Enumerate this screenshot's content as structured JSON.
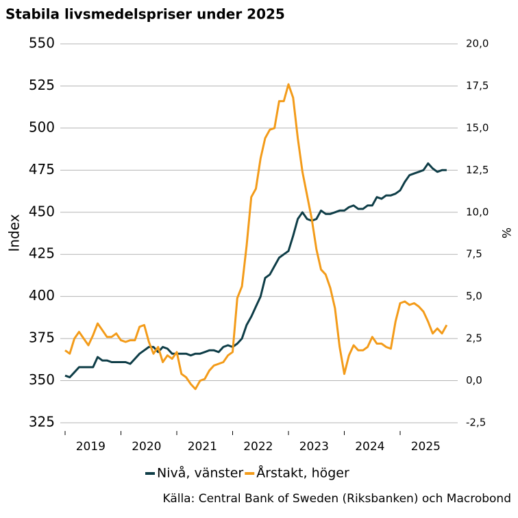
{
  "chart_data": {
    "type": "line",
    "title": "Stabila livsmedelspriser under 2025",
    "ylabel": "Index",
    "y2label": "%",
    "source": "Källa: Central Bank of Sweden (Riksbanken) och Macrobond",
    "categories": [
      null,
      null,
      null,
      null,
      null,
      null,
      "2019",
      null,
      null,
      null,
      null,
      null,
      null,
      null,
      null,
      null,
      null,
      null,
      "2020",
      null,
      null,
      null,
      null,
      null,
      null,
      null,
      null,
      null,
      null,
      null,
      "2021",
      null,
      null,
      null,
      null,
      null,
      null,
      null,
      null,
      null,
      null,
      null,
      "2022",
      null,
      null,
      null,
      null,
      null,
      null,
      null,
      null,
      null,
      null,
      null,
      "2023",
      null,
      null,
      null,
      null,
      null,
      null,
      null,
      null,
      null,
      null,
      null,
      "2024",
      null,
      null,
      null,
      null,
      null,
      null,
      null,
      null,
      null,
      null,
      null,
      "2025",
      null,
      null,
      null,
      null
    ],
    "series": [
      {
        "name": "Nivå, vänster",
        "color": "#0e3d47",
        "axis": "y",
        "values": [
          353,
          352,
          355,
          358,
          358,
          358,
          358,
          364,
          362,
          362,
          361,
          361,
          361,
          361,
          360,
          363,
          366,
          368,
          370,
          370,
          367,
          370,
          369,
          366,
          366,
          366,
          366,
          365,
          366,
          366,
          367,
          368,
          368,
          367,
          370,
          371,
          370,
          372,
          375,
          383,
          388,
          394,
          400,
          411,
          413,
          418,
          423,
          425,
          427,
          436,
          446,
          450,
          446,
          445,
          446,
          451,
          449,
          449,
          450,
          451,
          451,
          453,
          454,
          452,
          452,
          454,
          454,
          459,
          458,
          460,
          460,
          461,
          463,
          468,
          472,
          473,
          474,
          475,
          479,
          476,
          474,
          475,
          475
        ]
      },
      {
        "name": "Årstakt, höger",
        "color": "#f39b19",
        "axis": "y2",
        "values": [
          1.8,
          1.6,
          2.5,
          2.9,
          2.5,
          2.1,
          2.7,
          3.4,
          3.0,
          2.6,
          2.6,
          2.8,
          2.4,
          2.3,
          2.4,
          2.4,
          3.2,
          3.3,
          2.3,
          1.6,
          2.0,
          1.1,
          1.5,
          1.3,
          1.7,
          0.4,
          0.2,
          -0.2,
          -0.5,
          0.0,
          0.1,
          0.6,
          0.9,
          1.0,
          1.1,
          1.5,
          1.7,
          4.9,
          5.6,
          8.0,
          10.9,
          11.4,
          13.2,
          14.4,
          14.9,
          15.0,
          16.6,
          16.6,
          17.6,
          16.8,
          14.4,
          12.4,
          11.0,
          9.6,
          7.8,
          6.6,
          6.3,
          5.5,
          4.3,
          2.0,
          0.4,
          1.5,
          2.1,
          1.8,
          1.8,
          2.0,
          2.6,
          2.2,
          2.2,
          2.0,
          1.9,
          3.5,
          4.6,
          4.7,
          4.5,
          4.6,
          4.4,
          4.1,
          3.5,
          2.8,
          3.1,
          2.8,
          3.3
        ]
      }
    ],
    "ylim": [
      325,
      550
    ],
    "yticks": [
      325,
      350,
      375,
      400,
      425,
      450,
      475,
      500,
      525,
      550
    ],
    "y2lim": [
      -2.5,
      20
    ],
    "y2ticks": [
      {
        "value": -2.5,
        "label": "-2,5"
      },
      {
        "value": 0,
        "label": "0,0"
      },
      {
        "value": 2.5,
        "label": "2,5"
      },
      {
        "value": 5,
        "label": "5,0"
      },
      {
        "value": 7.5,
        "label": "7,5"
      },
      {
        "value": 10,
        "label": "10,0"
      },
      {
        "value": 12.5,
        "label": "12,5"
      },
      {
        "value": 15,
        "label": "15,0"
      },
      {
        "value": 17.5,
        "label": "17,5"
      },
      {
        "value": 20,
        "label": "20,0"
      }
    ],
    "grid": true,
    "legend": "bottom"
  }
}
